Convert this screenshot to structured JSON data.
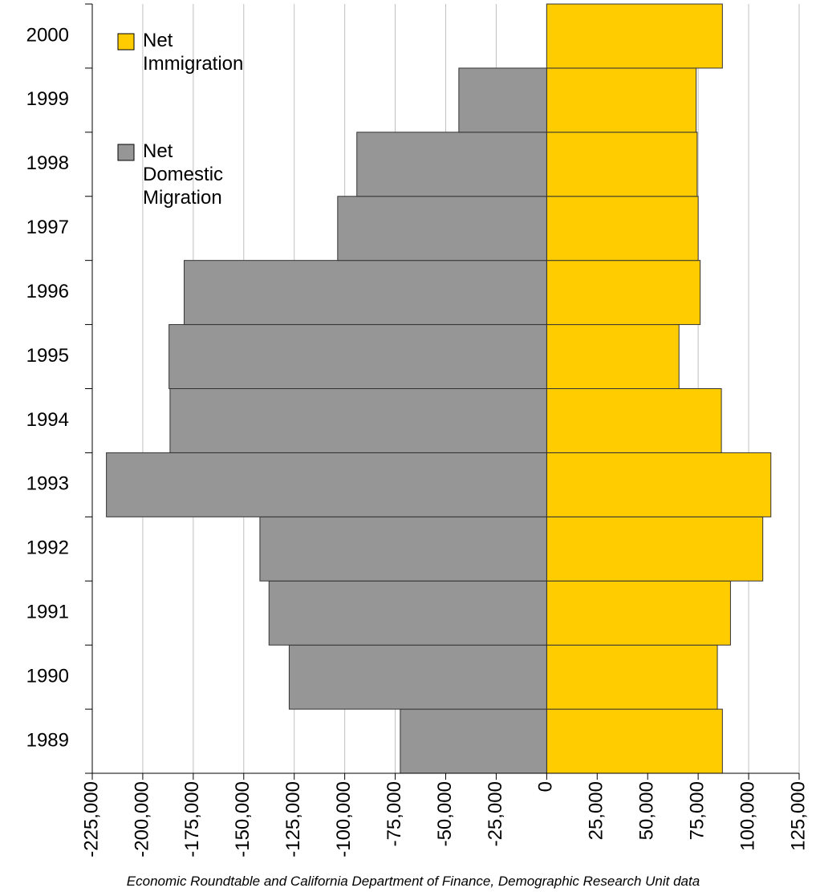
{
  "chart_data": {
    "type": "bar",
    "orientation": "horizontal",
    "stacked": "diverging",
    "categories": [
      "1989",
      "1990",
      "1991",
      "1992",
      "1993",
      "1994",
      "1995",
      "1996",
      "1997",
      "1998",
      "1999",
      "2000"
    ],
    "series": [
      {
        "name": "Net Immigration",
        "color": "#ffcc00",
        "values": [
          87000,
          84500,
          91000,
          107000,
          111000,
          86500,
          65500,
          76000,
          75000,
          74500,
          74000,
          87000
        ]
      },
      {
        "name": "Net Domestic Migration",
        "color": "#969696",
        "values": [
          -72500,
          -127500,
          -137500,
          -142000,
          -218000,
          -186500,
          -187000,
          -179500,
          -103500,
          -94000,
          -43500,
          null
        ]
      }
    ],
    "xlim": [
      -225000,
      125000
    ],
    "xticks": [
      {
        "value": -225000,
        "label": "-225,000"
      },
      {
        "value": -200000,
        "label": "-200,000"
      },
      {
        "value": -175000,
        "label": "-175,000"
      },
      {
        "value": -150000,
        "label": "-150,000"
      },
      {
        "value": -125000,
        "label": "-125,000"
      },
      {
        "value": -100000,
        "label": "-100,000"
      },
      {
        "value": -75000,
        "label": "-75,000"
      },
      {
        "value": -50000,
        "label": "-50,000"
      },
      {
        "value": -25000,
        "label": "-25,000"
      },
      0,
      {
        "value": 25000,
        "label": "25,000"
      },
      {
        "value": 50000,
        "label": "50,000"
      },
      {
        "value": 75000,
        "label": "75,000"
      },
      {
        "value": 100000,
        "label": "100,000"
      },
      {
        "value": 125000,
        "label": "125,000"
      }
    ],
    "grid": true,
    "legend": "upper left",
    "source": "Economic Roundtable and California Department of Finance, Demographic Research Unit data"
  }
}
